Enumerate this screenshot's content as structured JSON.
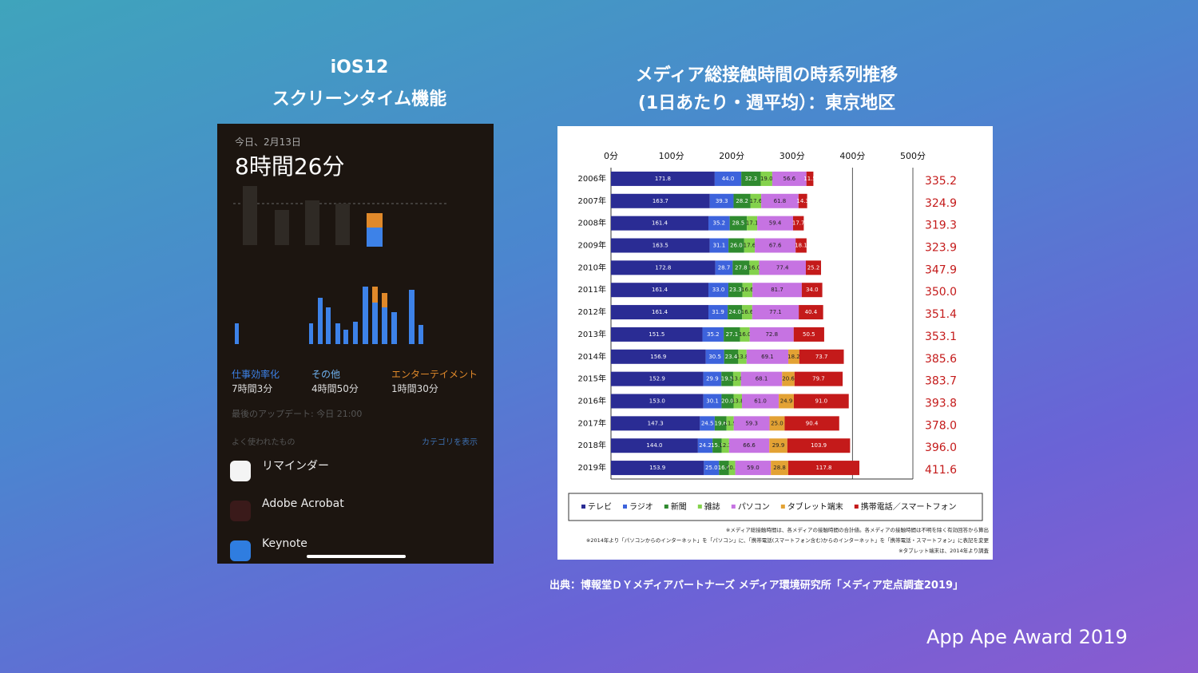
{
  "slide": {
    "left_title": "iOS12",
    "left_subtitle": "スクリーンタイム機能",
    "right_title": "メディア総接触時間の時系列推移",
    "right_subtitle": "(1日あたり・週平均）：東京地区",
    "source": "出典：博報堂ＤＹメディアパートナーズ メディア環境研究所「メディア定点調査2019」",
    "logo": "App Ape Award 2019"
  },
  "screen_time": {
    "date": "今日、2月13日",
    "total": "8時間26分",
    "categories": [
      {
        "name": "仕事効率化",
        "time": "7時間3分"
      },
      {
        "name": "その他",
        "time": "4時間50分"
      },
      {
        "name": "エンターテイメント",
        "time": "1時間30分"
      }
    ],
    "updated": "最後のアップデート: 今日 21:00",
    "most_used": "よく使われたもの",
    "show_categories": "カテゴリを表示",
    "apps": [
      "リマインダー",
      "Adobe Acrobat",
      "Keynote"
    ]
  },
  "chart_data": {
    "type": "stacked-bar-horizontal",
    "categories": [
      "2006年",
      "2007年",
      "2008年",
      "2009年",
      "2010年",
      "2011年",
      "2012年",
      "2013年",
      "2014年",
      "2015年",
      "2016年",
      "2017年",
      "2018年",
      "2019年"
    ],
    "series": [
      {
        "name": "テレビ",
        "color": "#2a2c94",
        "values": [
          171.8,
          163.7,
          161.4,
          163.5,
          172.8,
          161.4,
          161.4,
          151.5,
          156.9,
          152.9,
          153.0,
          147.3,
          144.0,
          153.9
        ],
        "value_labels": [
          "171.8",
          "163.7",
          "161.4",
          "163.5",
          "172.8",
          "161.4",
          "161.4",
          "151.5",
          "156.9",
          "152.9",
          "153.0",
          "147.3",
          "144.0",
          "153.9"
        ]
      },
      {
        "name": "ラジオ",
        "color": "#3d63dc",
        "values": [
          44.0,
          39.3,
          35.2,
          31.1,
          28.7,
          33.0,
          31.9,
          35.2,
          30.5,
          29.9,
          30.1,
          24.5,
          24.2,
          25.0
        ],
        "value_labels": [
          "44.0",
          "39.3",
          "35.2",
          "31.1",
          "28.7",
          "33.0",
          "31.9",
          "35.2",
          "30.5",
          "29.9",
          "30.1",
          "24.5",
          "24.2",
          "25.0"
        ]
      },
      {
        "name": "新聞",
        "color": "#2f8a2f",
        "values": [
          32.3,
          28.2,
          28.5,
          26.0,
          27.8,
          23.3,
          24.0,
          27.1,
          23.4,
          19.5,
          20.0,
          19.6,
          15.1,
          16.6
        ],
        "value_labels": [
          "32.3",
          "28.2",
          "28.5",
          "26.0",
          "27.8",
          "23.3",
          "24.0",
          "27.1",
          "23.4",
          "19.5",
          "20.0",
          "19.6",
          "15.1",
          "16.6"
        ]
      },
      {
        "name": "雑誌",
        "color": "#84d24c",
        "values": [
          19.0,
          17.6,
          17.1,
          17.6,
          16.0,
          16.6,
          16.6,
          16.0,
          13.8,
          13.0,
          13.8,
          11.9,
          12.3,
          10.3
        ],
        "value_labels": [
          "19.0",
          "17.6",
          "17.1",
          "17.6",
          "16.0",
          "16.6",
          "16.6",
          "16.0",
          "13.8",
          "13.0",
          "13.8",
          "11.9",
          "12.3",
          "10.3"
        ]
      },
      {
        "name": "パソコン",
        "color": "#c673e2",
        "values": [
          56.6,
          61.8,
          59.4,
          67.6,
          77.4,
          81.7,
          77.1,
          72.8,
          69.1,
          68.1,
          61.0,
          59.3,
          66.6,
          59.0
        ],
        "value_labels": [
          "56.6",
          "61.8",
          "59.4",
          "67.6",
          "77.4",
          "81.7",
          "77.1",
          "72.8",
          "69.1",
          "68.1",
          "61.0",
          "59.3",
          "66.6",
          "59.0"
        ]
      },
      {
        "name": "タブレット端末",
        "color": "#e3a234",
        "values": [
          null,
          null,
          null,
          null,
          null,
          null,
          null,
          null,
          18.2,
          20.6,
          24.9,
          25.0,
          29.9,
          28.8
        ],
        "value_labels": [
          null,
          null,
          null,
          null,
          null,
          null,
          null,
          null,
          "18.2",
          "20.6",
          "24.9",
          "25.0",
          "29.9",
          "28.8"
        ]
      },
      {
        "name": "携帯電話／スマートフォン",
        "color": "#c41a1a",
        "values": [
          11.5,
          14.3,
          17.7,
          18.1,
          25.2,
          34.0,
          40.4,
          50.5,
          73.7,
          79.7,
          91.0,
          90.4,
          103.9,
          117.8
        ],
        "value_labels": [
          "11.5",
          "14.3",
          "17.7",
          "18.1",
          "25.2",
          "34.0",
          "40.4",
          "50.5",
          "73.7",
          "79.7",
          "91.0",
          "90.4",
          "103.9",
          "117.8"
        ]
      }
    ],
    "totals": [
      "335.2",
      "324.9",
      "319.3",
      "323.9",
      "347.9",
      "350.0",
      "351.4",
      "353.1",
      "385.6",
      "383.7",
      "393.8",
      "378.0",
      "396.0",
      "411.6"
    ],
    "xlim": [
      0,
      500
    ],
    "xticks": [
      {
        "value": 0,
        "label": "0分"
      },
      {
        "value": 100,
        "label": "100分"
      },
      {
        "value": 200,
        "label": "200分"
      },
      {
        "value": 300,
        "label": "300分"
      },
      {
        "value": 400,
        "label": "400分"
      },
      {
        "value": 500,
        "label": "500分"
      }
    ],
    "notes": [
      "※メディア総接触時間は、各メディアの接触時間の合計値。各メディアの接触時間は不明を除く有効回答から算出",
      "※2014年より「パソコンからのインターネット」を「パソコン」に、「携帯電話(スマートフォン含む)からのインターネット」を「携帯電話・スマートフォン」に表記を変更",
      "※タブレット端末は、2014年より調査"
    ]
  }
}
